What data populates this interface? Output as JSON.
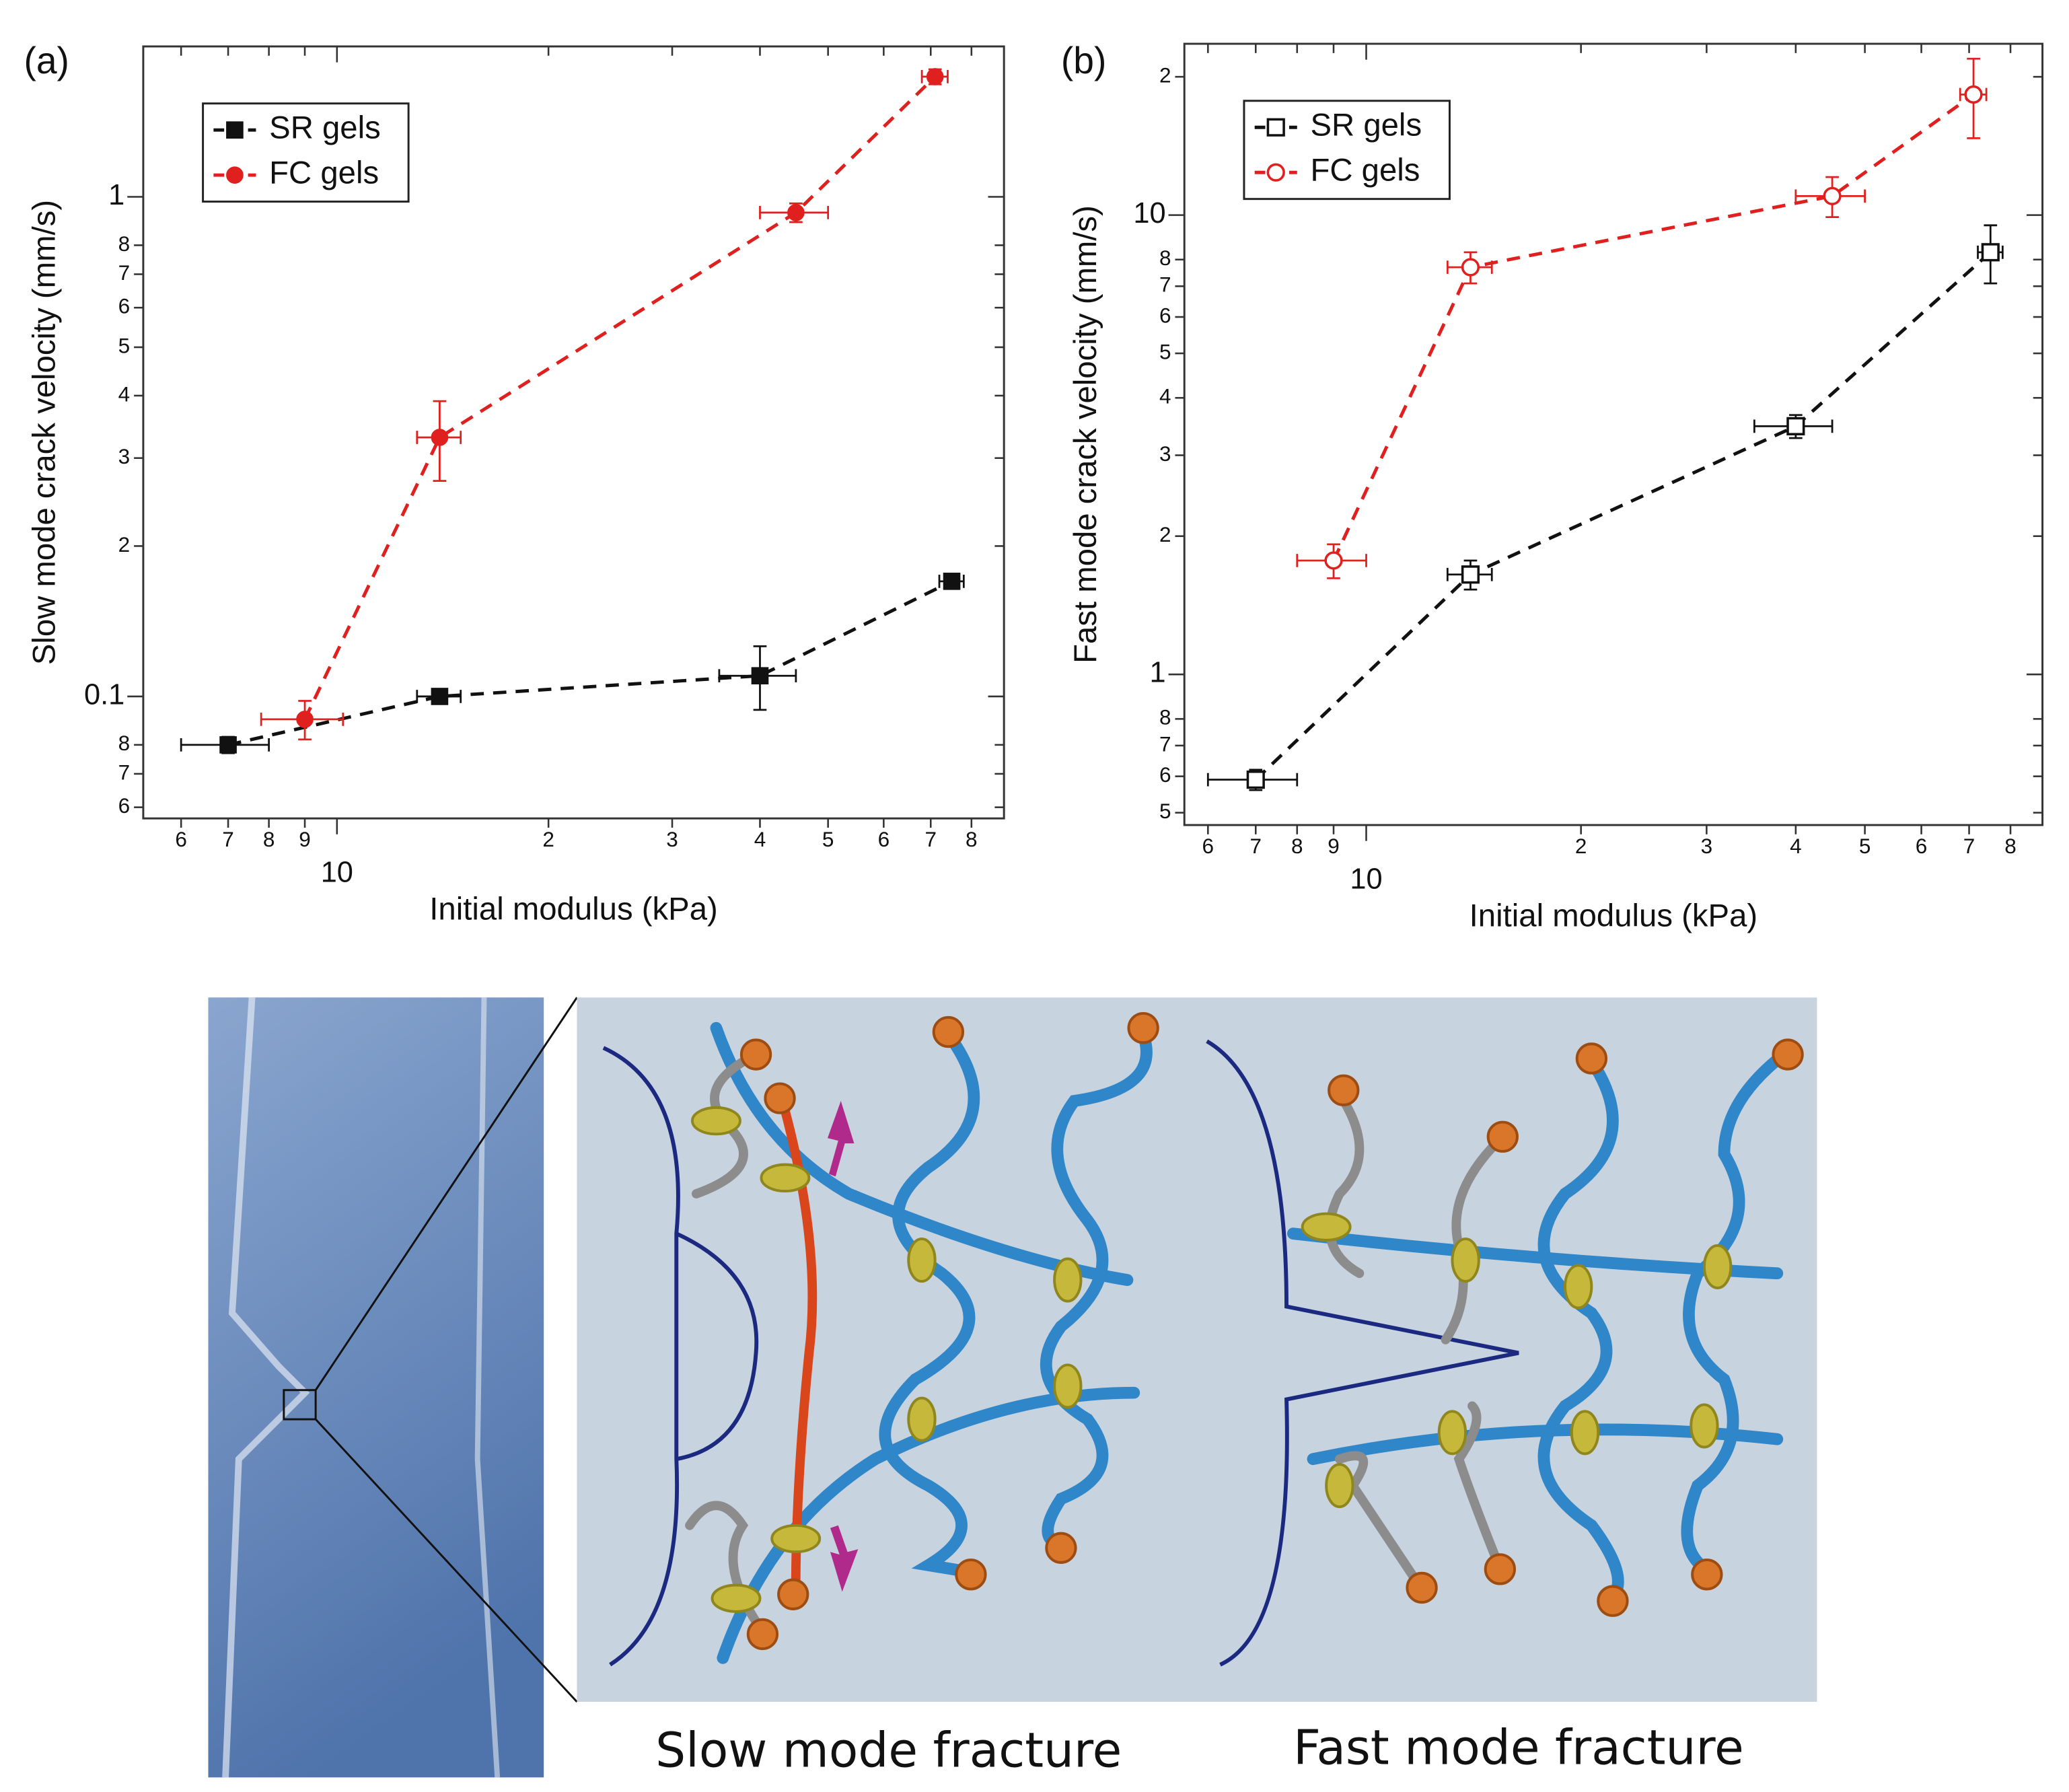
{
  "chart_data": [
    {
      "type": "scatter",
      "panel_label": "(a)",
      "x_label": "Initial modulus (kPa)",
      "y_label": "Slow mode crack velocity (mm/s)",
      "xscale": "log",
      "yscale": "log",
      "grid": false,
      "legend": "upper left",
      "xlim": [
        5.3,
        89
      ],
      "ylim": [
        0.057,
        2.0
      ],
      "xticks": [
        6,
        7,
        8,
        9,
        10,
        {
          "value": 20,
          "label": "2"
        },
        {
          "value": 30,
          "label": "3"
        },
        {
          "value": 40,
          "label": "4"
        },
        {
          "value": 50,
          "label": "5"
        },
        {
          "value": 60,
          "label": "6"
        },
        {
          "value": 70,
          "label": "7"
        },
        {
          "value": 80,
          "label": "8"
        }
      ],
      "yticks": [
        {
          "value": 0.06,
          "label": "6"
        },
        {
          "value": 0.07,
          "label": "7"
        },
        {
          "value": 0.08,
          "label": "8"
        },
        0.1,
        {
          "value": 0.2,
          "label": "2"
        },
        {
          "value": 0.3,
          "label": "3"
        },
        {
          "value": 0.4,
          "label": "4"
        },
        {
          "value": 0.5,
          "label": "5"
        },
        {
          "value": 0.6,
          "label": "6"
        },
        {
          "value": 0.7,
          "label": "7"
        },
        {
          "value": 0.8,
          "label": "8"
        },
        1
      ],
      "series": [
        {
          "name": "SR gels",
          "color": "#111111",
          "marker": "square",
          "filled": true,
          "x": [
            7,
            14,
            40,
            75
          ],
          "values": [
            0.08,
            0.1,
            0.11,
            0.17
          ],
          "xerr": [
            1,
            1,
            5,
            3
          ],
          "yerr": [
            0.003,
            0.002,
            0.016,
            0.005
          ]
        },
        {
          "name": "FC gels",
          "color": "#e0201e",
          "marker": "circle",
          "filled": true,
          "x": [
            9,
            14,
            45,
            71
          ],
          "values": [
            0.09,
            0.33,
            0.93,
            1.74
          ],
          "xerr": [
            1.2,
            1,
            5,
            3
          ],
          "yerr": [
            0.008,
            0.06,
            0.04,
            0.06
          ]
        }
      ]
    },
    {
      "type": "scatter",
      "panel_label": "(b)",
      "x_label": "Initial modulus (kPa)",
      "y_label": "Fast mode crack velocity (mm/s)",
      "xscale": "log",
      "yscale": "log",
      "grid": false,
      "legend": "upper left",
      "xlim": [
        5.56,
        88.7
      ],
      "ylim": [
        0.47,
        23.6
      ],
      "xticks": [
        6,
        7,
        8,
        9,
        10,
        {
          "value": 20,
          "label": "2"
        },
        {
          "value": 30,
          "label": "3"
        },
        {
          "value": 40,
          "label": "4"
        },
        {
          "value": 50,
          "label": "5"
        },
        {
          "value": 60,
          "label": "6"
        },
        {
          "value": 70,
          "label": "7"
        },
        {
          "value": 80,
          "label": "8"
        }
      ],
      "yticks": [
        {
          "value": 0.5,
          "label": "5"
        },
        {
          "value": 0.6,
          "label": "6"
        },
        {
          "value": 0.7,
          "label": "7"
        },
        {
          "value": 0.8,
          "label": "8"
        },
        1,
        {
          "value": 2,
          "label": "2"
        },
        {
          "value": 3,
          "label": "3"
        },
        {
          "value": 4,
          "label": "4"
        },
        {
          "value": 5,
          "label": "5"
        },
        {
          "value": 6,
          "label": "6"
        },
        {
          "value": 7,
          "label": "7"
        },
        {
          "value": 8,
          "label": "8"
        },
        10,
        {
          "value": 20,
          "label": "2"
        }
      ],
      "series": [
        {
          "name": "SR gels",
          "color": "#111111",
          "marker": "square",
          "filled": false,
          "x": [
            7,
            14,
            40,
            75
          ],
          "values": [
            0.59,
            1.65,
            3.47,
            8.3
          ],
          "xerr": [
            1,
            1,
            5,
            3
          ],
          "yerr": [
            0.03,
            0.12,
            0.2,
            1.2
          ]
        },
        {
          "name": "FC gels",
          "color": "#e0201e",
          "marker": "circle",
          "filled": false,
          "x": [
            9,
            14,
            45,
            71
          ],
          "values": [
            1.77,
            7.7,
            11.0,
            18.3
          ],
          "xerr": [
            1,
            1,
            5,
            3
          ],
          "yerr": [
            0.15,
            0.6,
            1.1,
            3.6
          ]
        }
      ]
    }
  ],
  "illustration": {
    "captions": [
      "Slow mode fracture",
      "Fast mode fracture"
    ]
  }
}
